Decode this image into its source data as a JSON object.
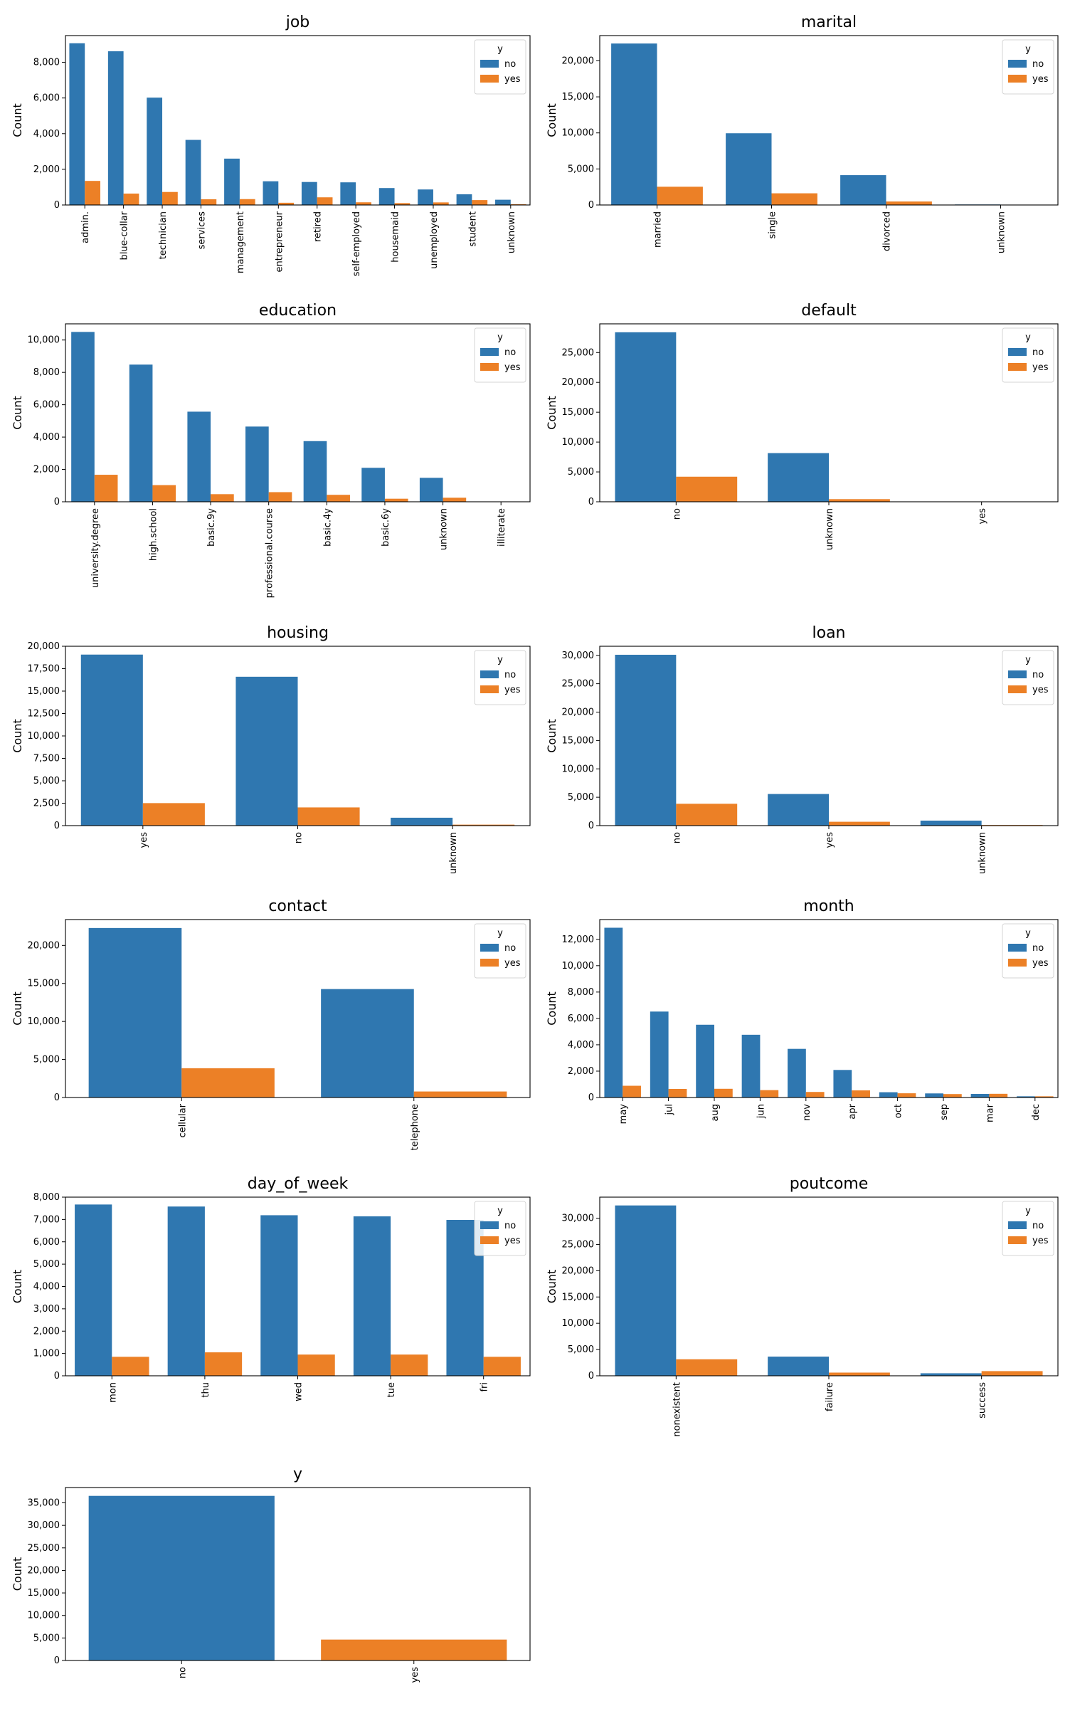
{
  "colors": {
    "no": "#2f77b0",
    "yes": "#ec8026"
  },
  "chart_data": [
    {
      "type": "bar",
      "title": "job",
      "ylabel": "Count",
      "legend_title": "y",
      "legend": "top-right",
      "categories": [
        "admin.",
        "blue-collar",
        "technician",
        "services",
        "management",
        "entrepreneur",
        "retired",
        "self-employed",
        "housemaid",
        "unemployed",
        "student",
        "unknown"
      ],
      "series": [
        {
          "name": "no",
          "values": [
            9070,
            8620,
            6020,
            3650,
            2600,
            1330,
            1290,
            1270,
            950,
            870,
            600,
            295
          ]
        },
        {
          "name": "yes",
          "values": [
            1350,
            640,
            730,
            320,
            330,
            125,
            430,
            150,
            105,
            145,
            275,
            40
          ]
        }
      ],
      "ylim": [
        0,
        9500
      ],
      "yticks": [
        0,
        2000,
        4000,
        6000,
        8000
      ],
      "ytick_labels": [
        "0",
        "2,000",
        "4,000",
        "6,000",
        "8,000"
      ]
    },
    {
      "type": "bar",
      "title": "marital",
      "ylabel": "Count",
      "legend_title": "y",
      "legend": "top-right",
      "categories": [
        "married",
        "single",
        "divorced",
        "unknown"
      ],
      "series": [
        {
          "name": "no",
          "values": [
            22400,
            9950,
            4140,
            70
          ]
        },
        {
          "name": "yes",
          "values": [
            2530,
            1620,
            480,
            12
          ]
        }
      ],
      "ylim": [
        0,
        23500
      ],
      "yticks": [
        0,
        5000,
        10000,
        15000,
        20000
      ],
      "ytick_labels": [
        "0",
        "5,000",
        "10,000",
        "15,000",
        "20,000"
      ]
    },
    {
      "type": "bar",
      "title": "education",
      "ylabel": "Count",
      "legend_title": "y",
      "legend": "top-right",
      "categories": [
        "university.degree",
        "high.school",
        "basic.9y",
        "professional.course",
        "basic.4y",
        "basic.6y",
        "unknown",
        "illiterate"
      ],
      "series": [
        {
          "name": "no",
          "values": [
            10500,
            8480,
            5570,
            4650,
            3750,
            2100,
            1480,
            14
          ]
        },
        {
          "name": "yes",
          "values": [
            1670,
            1030,
            470,
            595,
            430,
            190,
            250,
            4
          ]
        }
      ],
      "ylim": [
        0,
        11000
      ],
      "yticks": [
        0,
        2000,
        4000,
        6000,
        8000,
        10000
      ],
      "ytick_labels": [
        "0",
        "2,000",
        "4,000",
        "6,000",
        "8,000",
        "10,000"
      ]
    },
    {
      "type": "bar",
      "title": "default",
      "ylabel": "Count",
      "legend_title": "y",
      "legend": "top-right",
      "categories": [
        "no",
        "unknown",
        "yes"
      ],
      "series": [
        {
          "name": "no",
          "values": [
            28390,
            8150,
            3
          ]
        },
        {
          "name": "yes",
          "values": [
            4200,
            440,
            0
          ]
        }
      ],
      "ylim": [
        0,
        29800
      ],
      "yticks": [
        0,
        5000,
        10000,
        15000,
        20000,
        25000
      ],
      "ytick_labels": [
        "0",
        "5,000",
        "10,000",
        "15,000",
        "20,000",
        "25,000"
      ]
    },
    {
      "type": "bar",
      "title": "housing",
      "ylabel": "Count",
      "legend_title": "y",
      "legend": "top-right",
      "categories": [
        "yes",
        "no",
        "unknown"
      ],
      "series": [
        {
          "name": "no",
          "values": [
            19070,
            16600,
            880
          ]
        },
        {
          "name": "yes",
          "values": [
            2510,
            2030,
            110
          ]
        }
      ],
      "ylim": [
        0,
        20000
      ],
      "yticks": [
        0,
        2500,
        5000,
        7500,
        10000,
        12500,
        15000,
        17500,
        20000
      ],
      "ytick_labels": [
        "0",
        "2,500",
        "5,000",
        "7,500",
        "10,000",
        "12,500",
        "15,000",
        "17,500",
        "20,000"
      ]
    },
    {
      "type": "bar",
      "title": "loan",
      "ylabel": "Count",
      "legend_title": "y",
      "legend": "top-right",
      "categories": [
        "no",
        "yes",
        "unknown"
      ],
      "series": [
        {
          "name": "no",
          "values": [
            30100,
            5570,
            880
          ]
        },
        {
          "name": "yes",
          "values": [
            3850,
            680,
            110
          ]
        }
      ],
      "ylim": [
        0,
        31600
      ],
      "yticks": [
        0,
        5000,
        10000,
        15000,
        20000,
        25000,
        30000
      ],
      "ytick_labels": [
        "0",
        "5,000",
        "10,000",
        "15,000",
        "20,000",
        "25,000",
        "30,000"
      ]
    },
    {
      "type": "bar",
      "title": "contact",
      "ylabel": "Count",
      "legend_title": "y",
      "legend": "top-right",
      "categories": [
        "cellular",
        "telephone"
      ],
      "series": [
        {
          "name": "no",
          "values": [
            22290,
            14260
          ]
        },
        {
          "name": "yes",
          "values": [
            3850,
            790
          ]
        }
      ],
      "ylim": [
        0,
        23400
      ],
      "yticks": [
        0,
        5000,
        10000,
        15000,
        20000
      ],
      "ytick_labels": [
        "0",
        "5,000",
        "10,000",
        "15,000",
        "20,000"
      ]
    },
    {
      "type": "bar",
      "title": "month",
      "ylabel": "Count",
      "legend_title": "y",
      "legend": "top-right",
      "categories": [
        "may",
        "jul",
        "aug",
        "jun",
        "nov",
        "apr",
        "oct",
        "sep",
        "mar",
        "dec"
      ],
      "series": [
        {
          "name": "no",
          "values": [
            12880,
            6520,
            5520,
            4760,
            3690,
            2090,
            400,
            310,
            270,
            90
          ]
        },
        {
          "name": "yes",
          "values": [
            890,
            650,
            660,
            560,
            420,
            540,
            320,
            260,
            280,
            90
          ]
        }
      ],
      "ylim": [
        0,
        13500
      ],
      "yticks": [
        0,
        2000,
        4000,
        6000,
        8000,
        10000,
        12000
      ],
      "ytick_labels": [
        "0",
        "2,000",
        "4,000",
        "6,000",
        "8,000",
        "10,000",
        "12,000"
      ]
    },
    {
      "type": "bar",
      "title": "day_of_week",
      "ylabel": "Count",
      "legend_title": "y",
      "legend": "top-right",
      "categories": [
        "mon",
        "thu",
        "wed",
        "tue",
        "fri"
      ],
      "series": [
        {
          "name": "no",
          "values": [
            7670,
            7580,
            7190,
            7140,
            6980
          ]
        },
        {
          "name": "yes",
          "values": [
            850,
            1050,
            950,
            950,
            850
          ]
        }
      ],
      "ylim": [
        0,
        8000
      ],
      "yticks": [
        0,
        1000,
        2000,
        3000,
        4000,
        5000,
        6000,
        7000,
        8000
      ],
      "ytick_labels": [
        "0",
        "1,000",
        "2,000",
        "3,000",
        "4,000",
        "5,000",
        "6,000",
        "7,000",
        "8,000"
      ]
    },
    {
      "type": "bar",
      "title": "poutcome",
      "ylabel": "Count",
      "legend_title": "y",
      "legend": "top-right",
      "categories": [
        "nonexistent",
        "failure",
        "success"
      ],
      "series": [
        {
          "name": "no",
          "values": [
            32420,
            3650,
            480
          ]
        },
        {
          "name": "yes",
          "values": [
            3140,
            610,
            890
          ]
        }
      ],
      "ylim": [
        0,
        34000
      ],
      "yticks": [
        0,
        5000,
        10000,
        15000,
        20000,
        25000,
        30000
      ],
      "ytick_labels": [
        "0",
        "5,000",
        "10,000",
        "15,000",
        "20,000",
        "25,000",
        "30,000"
      ]
    },
    {
      "type": "bar",
      "title": "y",
      "ylabel": "Count",
      "dodge": false,
      "categories": [
        "no",
        "yes"
      ],
      "series": [
        {
          "name": "no",
          "values": [
            36550,
            0
          ]
        },
        {
          "name": "yes",
          "values": [
            0,
            4640
          ]
        }
      ],
      "ylim": [
        0,
        38400
      ],
      "yticks": [
        0,
        5000,
        10000,
        15000,
        20000,
        25000,
        30000,
        35000
      ],
      "ytick_labels": [
        "0",
        "5,000",
        "10,000",
        "15,000",
        "20,000",
        "25,000",
        "30,000",
        "35,000"
      ]
    }
  ]
}
